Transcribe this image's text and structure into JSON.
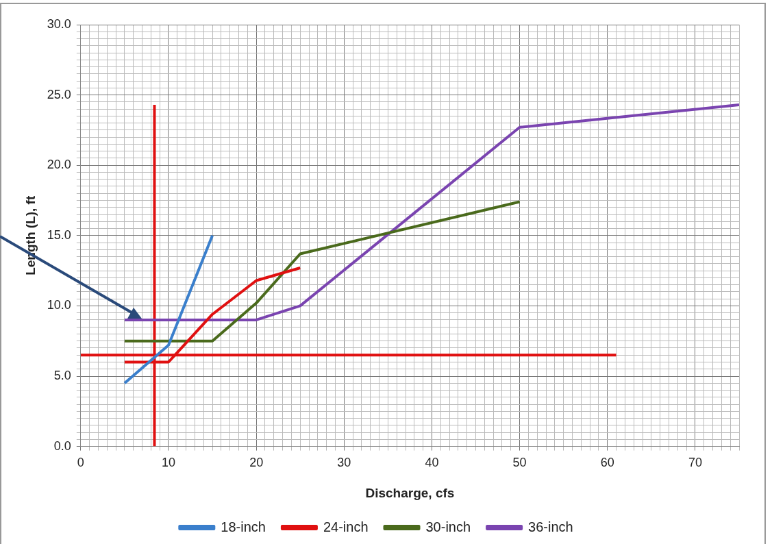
{
  "chart_data": {
    "type": "line",
    "xlabel": "Discharge, cfs",
    "ylabel": "Length (L), ft",
    "xlim": [
      0,
      75
    ],
    "ylim": [
      0,
      30
    ],
    "xticks": [
      0,
      {
        "value": 1,
        "label": null
      },
      {
        "value": 2,
        "label": null
      },
      {
        "value": 3,
        "label": null
      },
      {
        "value": 4,
        "label": null
      },
      {
        "value": 5,
        "label": null
      },
      {
        "value": 6,
        "label": null
      },
      {
        "value": 7,
        "label": null
      },
      {
        "value": 8,
        "label": null
      },
      {
        "value": 9,
        "label": null
      },
      10,
      {
        "value": 11,
        "label": null
      },
      {
        "value": 12,
        "label": null
      },
      {
        "value": 13,
        "label": null
      },
      {
        "value": 14,
        "label": null
      },
      {
        "value": 15,
        "label": null
      },
      {
        "value": 16,
        "label": null
      },
      {
        "value": 17,
        "label": null
      },
      {
        "value": 18,
        "label": null
      },
      {
        "value": 19,
        "label": null
      },
      20,
      {
        "value": 21,
        "label": null
      },
      {
        "value": 22,
        "label": null
      },
      {
        "value": 23,
        "label": null
      },
      {
        "value": 24,
        "label": null
      },
      {
        "value": 25,
        "label": null
      },
      {
        "value": 26,
        "label": null
      },
      {
        "value": 27,
        "label": null
      },
      {
        "value": 28,
        "label": null
      },
      {
        "value": 29,
        "label": null
      },
      30,
      {
        "value": 31,
        "label": null
      },
      {
        "value": 32,
        "label": null
      },
      {
        "value": 33,
        "label": null
      },
      {
        "value": 34,
        "label": null
      },
      {
        "value": 35,
        "label": null
      },
      {
        "value": 36,
        "label": null
      },
      {
        "value": 37,
        "label": null
      },
      {
        "value": 38,
        "label": null
      },
      {
        "value": 39,
        "label": null
      },
      40,
      {
        "value": 41,
        "label": null
      },
      {
        "value": 42,
        "label": null
      },
      {
        "value": 43,
        "label": null
      },
      {
        "value": 44,
        "label": null
      },
      {
        "value": 45,
        "label": null
      },
      {
        "value": 46,
        "label": null
      },
      {
        "value": 47,
        "label": null
      },
      {
        "value": 48,
        "label": null
      },
      {
        "value": 49,
        "label": null
      },
      50,
      {
        "value": 51,
        "label": null
      },
      {
        "value": 52,
        "label": null
      },
      {
        "value": 53,
        "label": null
      },
      {
        "value": 54,
        "label": null
      },
      {
        "value": 55,
        "label": null
      },
      {
        "value": 56,
        "label": null
      },
      {
        "value": 57,
        "label": null
      },
      {
        "value": 58,
        "label": null
      },
      {
        "value": 59,
        "label": null
      },
      60,
      {
        "value": 61,
        "label": null
      },
      {
        "value": 62,
        "label": null
      },
      {
        "value": 63,
        "label": null
      },
      {
        "value": 64,
        "label": null
      },
      {
        "value": 65,
        "label": null
      },
      {
        "value": 66,
        "label": null
      },
      {
        "value": 67,
        "label": null
      },
      {
        "value": 68,
        "label": null
      },
      {
        "value": 69,
        "label": null
      },
      70,
      {
        "value": 71,
        "label": null
      },
      {
        "value": 72,
        "label": null
      },
      {
        "value": 73,
        "label": null
      },
      {
        "value": 74,
        "label": null
      },
      {
        "value": 75,
        "label": null
      }
    ],
    "yticks": [
      {
        "value": 0,
        "label": "0.0"
      },
      {
        "value": 0.5,
        "label": null
      },
      {
        "value": 1,
        "label": null
      },
      {
        "value": 1.5,
        "label": null
      },
      {
        "value": 2,
        "label": null
      },
      {
        "value": 2.5,
        "label": null
      },
      {
        "value": 3,
        "label": null
      },
      {
        "value": 3.5,
        "label": null
      },
      {
        "value": 4,
        "label": null
      },
      {
        "value": 4.5,
        "label": null
      },
      {
        "value": 5,
        "label": "5.0"
      },
      {
        "value": 5.5,
        "label": null
      },
      {
        "value": 6,
        "label": null
      },
      {
        "value": 6.5,
        "label": null
      },
      {
        "value": 7,
        "label": null
      },
      {
        "value": 7.5,
        "label": null
      },
      {
        "value": 8,
        "label": null
      },
      {
        "value": 8.5,
        "label": null
      },
      {
        "value": 9,
        "label": null
      },
      {
        "value": 9.5,
        "label": null
      },
      {
        "value": 10,
        "label": "10.0"
      },
      {
        "value": 10.5,
        "label": null
      },
      {
        "value": 11,
        "label": null
      },
      {
        "value": 11.5,
        "label": null
      },
      {
        "value": 12,
        "label": null
      },
      {
        "value": 12.5,
        "label": null
      },
      {
        "value": 13,
        "label": null
      },
      {
        "value": 13.5,
        "label": null
      },
      {
        "value": 14,
        "label": null
      },
      {
        "value": 14.5,
        "label": null
      },
      {
        "value": 15,
        "label": "15.0"
      },
      {
        "value": 15.5,
        "label": null
      },
      {
        "value": 16,
        "label": null
      },
      {
        "value": 16.5,
        "label": null
      },
      {
        "value": 17,
        "label": null
      },
      {
        "value": 17.5,
        "label": null
      },
      {
        "value": 18,
        "label": null
      },
      {
        "value": 18.5,
        "label": null
      },
      {
        "value": 19,
        "label": null
      },
      {
        "value": 19.5,
        "label": null
      },
      {
        "value": 20,
        "label": "20.0"
      },
      {
        "value": 20.5,
        "label": null
      },
      {
        "value": 21,
        "label": null
      },
      {
        "value": 21.5,
        "label": null
      },
      {
        "value": 22,
        "label": null
      },
      {
        "value": 22.5,
        "label": null
      },
      {
        "value": 23,
        "label": null
      },
      {
        "value": 23.5,
        "label": null
      },
      {
        "value": 24,
        "label": null
      },
      {
        "value": 24.5,
        "label": null
      },
      {
        "value": 25,
        "label": "25.0"
      },
      {
        "value": 25.5,
        "label": null
      },
      {
        "value": 26,
        "label": null
      },
      {
        "value": 26.5,
        "label": null
      },
      {
        "value": 27,
        "label": null
      },
      {
        "value": 27.5,
        "label": null
      },
      {
        "value": 28,
        "label": null
      },
      {
        "value": 28.5,
        "label": null
      },
      {
        "value": 29,
        "label": null
      },
      {
        "value": 29.5,
        "label": null
      },
      {
        "value": 30,
        "label": "30.0"
      }
    ],
    "grid": true,
    "legend": "bottom",
    "marker": "none",
    "line_style": "solid",
    "series": [
      {
        "name": "18-inch",
        "color": "#3a7fcc",
        "x": [
          5,
          10,
          15
        ],
        "values": [
          4.5,
          7.2,
          15.0
        ]
      },
      {
        "name": "24-inch",
        "color": "#e01010",
        "x": [
          5,
          10,
          15,
          20,
          25
        ],
        "values": [
          6.0,
          6.0,
          9.4,
          11.8,
          12.7
        ]
      },
      {
        "name": "30-inch",
        "color": "#4a6a1c",
        "x": [
          5,
          10,
          15,
          20,
          25,
          50
        ],
        "values": [
          7.5,
          7.5,
          7.5,
          10.2,
          13.7,
          17.4
        ]
      },
      {
        "name": "36-inch",
        "color": "#7a44b0",
        "x": [
          5,
          10,
          15,
          20,
          25,
          50,
          75
        ],
        "values": [
          9.0,
          9.0,
          9.0,
          9.0,
          10.0,
          22.7,
          24.3
        ]
      },
      {
        "color": "#e01010",
        "x": [
          8.4,
          8.4
        ],
        "values": [
          0,
          24.3
        ]
      },
      {
        "color": "#e01010",
        "x": [
          0,
          61
        ],
        "values": [
          6.5,
          6.5
        ]
      }
    ]
  }
}
